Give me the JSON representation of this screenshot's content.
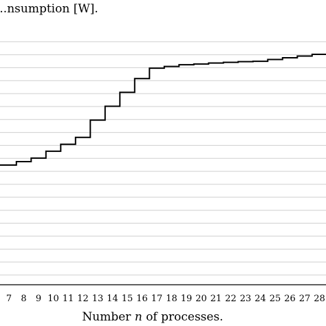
{
  "chart_data": {
    "type": "line",
    "step": true,
    "ylabel_visible": "...nsumption [W].",
    "xlabel": {
      "prefix": "Number ",
      "variable": "n",
      "suffix": " of processes."
    },
    "x": [
      7,
      8,
      9,
      10,
      11,
      12,
      13,
      14,
      15,
      16,
      17,
      18,
      19,
      20,
      21,
      22,
      23,
      24,
      25,
      26,
      27,
      28
    ],
    "tick_labels": [
      "7",
      "8",
      "9",
      "10",
      "11",
      "12",
      "13",
      "14",
      "15",
      "16",
      "17",
      "18",
      "19",
      "20",
      "21",
      "22",
      "23",
      "24",
      "25",
      "26",
      "27",
      "28"
    ],
    "series": [
      {
        "values": [
          0.0,
          0.01,
          0.02,
          0.04,
          0.06,
          0.08,
          0.13,
          0.17,
          0.21,
          0.25,
          0.28,
          0.285,
          0.29,
          0.292,
          0.295,
          0.297,
          0.299,
          0.3,
          0.305,
          0.31,
          0.315,
          0.32
        ],
        "color": "#000000"
      }
    ],
    "grid": {
      "horizontal": true,
      "vertical": false,
      "line_count": 20,
      "color": "#cfcfcf"
    },
    "legend": "none"
  }
}
